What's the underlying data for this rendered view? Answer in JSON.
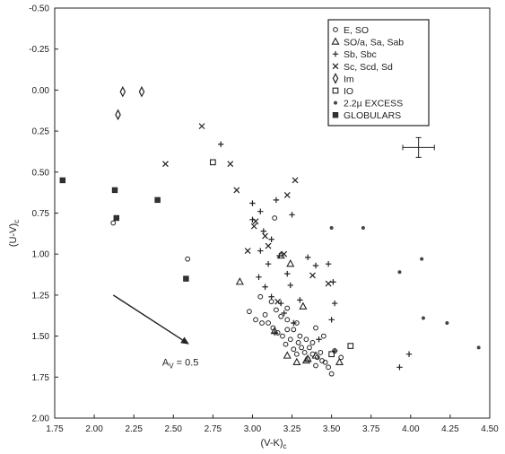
{
  "chart_data": {
    "type": "scatter",
    "xlabel": "(V-K)",
    "xlabel_sub": "c",
    "ylabel": "(U-V)",
    "ylabel_sub": "c",
    "xlim": [
      1.75,
      4.5
    ],
    "ylim": [
      -0.5,
      2.0
    ],
    "y_inverted": true,
    "grid": false,
    "legend_position": "top-right",
    "x_ticks": [
      1.75,
      2.0,
      2.25,
      2.5,
      2.75,
      3.0,
      3.25,
      3.5,
      3.75,
      4.0,
      4.25,
      4.5
    ],
    "x_tick_labels": [
      "1.75",
      "2.00",
      "2.25",
      "2.50",
      "2.75",
      "3.00",
      "3.25",
      "3.50",
      "3.75",
      "4.00",
      "4.25",
      "4.50"
    ],
    "y_ticks": [
      -0.5,
      -0.25,
      0.0,
      0.25,
      0.5,
      0.75,
      1.0,
      1.25,
      1.5,
      1.75,
      2.0
    ],
    "y_tick_labels": [
      "-0.50",
      "-0.25",
      "0.00",
      "0.25",
      "0.50",
      "0.75",
      "1.00",
      "1.25",
      "1.50",
      "1.75",
      "2.00"
    ],
    "series": [
      {
        "name": "E, SO",
        "marker": "circle-open",
        "points": [
          [
            2.12,
            0.81
          ],
          [
            2.59,
            1.03
          ],
          [
            3.05,
            1.26
          ],
          [
            3.08,
            1.37
          ],
          [
            3.12,
            1.29
          ],
          [
            3.15,
            1.34
          ],
          [
            3.18,
            1.38
          ],
          [
            3.22,
            1.33
          ],
          [
            2.98,
            1.35
          ],
          [
            3.02,
            1.4
          ],
          [
            3.06,
            1.42
          ],
          [
            3.1,
            1.42
          ],
          [
            3.13,
            1.45
          ],
          [
            3.16,
            1.48
          ],
          [
            3.19,
            1.5
          ],
          [
            3.22,
            1.46
          ],
          [
            3.24,
            1.52
          ],
          [
            3.21,
            1.55
          ],
          [
            3.26,
            1.58
          ],
          [
            3.29,
            1.54
          ],
          [
            3.31,
            1.57
          ],
          [
            3.28,
            1.61
          ],
          [
            3.33,
            1.6
          ],
          [
            3.36,
            1.57
          ],
          [
            3.38,
            1.61
          ],
          [
            3.35,
            1.64
          ],
          [
            3.41,
            1.63
          ],
          [
            3.44,
            1.65
          ],
          [
            3.4,
            1.68
          ],
          [
            3.46,
            1.66
          ],
          [
            3.48,
            1.69
          ],
          [
            3.5,
            1.73
          ],
          [
            3.43,
            1.6
          ],
          [
            3.38,
            1.54
          ],
          [
            3.34,
            1.52
          ],
          [
            3.3,
            1.5
          ],
          [
            3.26,
            1.46
          ],
          [
            3.14,
            0.78
          ],
          [
            3.45,
            1.5
          ],
          [
            3.52,
            1.59
          ],
          [
            3.56,
            1.63
          ],
          [
            3.4,
            1.45
          ],
          [
            3.22,
            1.4
          ],
          [
            3.28,
            1.42
          ]
        ]
      },
      {
        "name": "SO/a, Sa, Sab",
        "marker": "triangle-open",
        "points": [
          [
            2.92,
            1.17
          ],
          [
            3.18,
            1.01
          ],
          [
            3.24,
            1.06
          ],
          [
            3.14,
            1.47
          ],
          [
            3.32,
            1.32
          ],
          [
            3.22,
            1.62
          ],
          [
            3.28,
            1.66
          ],
          [
            3.35,
            1.64
          ],
          [
            3.4,
            1.62
          ],
          [
            3.55,
            1.66
          ],
          [
            3.34,
            1.65
          ]
        ]
      },
      {
        "name": "Sb, Sbc",
        "marker": "plus",
        "points": [
          [
            2.8,
            0.33
          ],
          [
            3.0,
            0.69
          ],
          [
            3.05,
            0.74
          ],
          [
            3.15,
            0.67
          ],
          [
            3.0,
            0.79
          ],
          [
            3.07,
            0.86
          ],
          [
            3.12,
            0.91
          ],
          [
            3.17,
            1.01
          ],
          [
            3.05,
            0.98
          ],
          [
            3.1,
            1.06
          ],
          [
            3.22,
            1.12
          ],
          [
            3.04,
            1.14
          ],
          [
            3.08,
            1.2
          ],
          [
            3.12,
            1.26
          ],
          [
            3.18,
            1.3
          ],
          [
            3.24,
            1.19
          ],
          [
            3.2,
            1.36
          ],
          [
            3.26,
            1.42
          ],
          [
            3.3,
            1.28
          ],
          [
            3.35,
            1.02
          ],
          [
            3.4,
            1.07
          ],
          [
            3.48,
            1.06
          ],
          [
            3.51,
            1.17
          ],
          [
            3.52,
            1.3
          ],
          [
            3.5,
            1.4
          ],
          [
            3.25,
            0.76
          ],
          [
            3.42,
            1.52
          ],
          [
            3.52,
            1.59
          ],
          [
            3.93,
            1.69
          ],
          [
            3.99,
            1.61
          ],
          [
            3.14,
            1.48
          ]
        ]
      },
      {
        "name": "Sc, Scd, Sd",
        "marker": "cross",
        "points": [
          [
            2.45,
            0.45
          ],
          [
            2.68,
            0.22
          ],
          [
            2.86,
            0.45
          ],
          [
            2.9,
            0.61
          ],
          [
            3.02,
            0.8
          ],
          [
            3.01,
            0.83
          ],
          [
            3.08,
            0.89
          ],
          [
            3.1,
            0.95
          ],
          [
            3.22,
            0.64
          ],
          [
            3.27,
            0.55
          ],
          [
            2.97,
            0.98
          ],
          [
            3.2,
            1.0
          ],
          [
            3.16,
            1.29
          ],
          [
            3.38,
            1.13
          ],
          [
            3.48,
            1.18
          ]
        ]
      },
      {
        "name": "Im",
        "marker": "diamond-open",
        "points": [
          [
            2.15,
            0.15
          ],
          [
            2.18,
            0.01
          ],
          [
            2.3,
            0.01
          ]
        ]
      },
      {
        "name": "IO",
        "marker": "square-open",
        "points": [
          [
            2.75,
            0.44
          ],
          [
            3.62,
            1.56
          ],
          [
            3.5,
            1.61
          ]
        ]
      },
      {
        "name": "2.2µ EXCESS",
        "marker": "dot",
        "points": [
          [
            3.5,
            0.84
          ],
          [
            3.7,
            0.84
          ],
          [
            3.93,
            1.11
          ],
          [
            4.07,
            1.03
          ],
          [
            4.08,
            1.39
          ],
          [
            4.23,
            1.42
          ],
          [
            4.43,
            1.57
          ]
        ]
      },
      {
        "name": "GLOBULARS",
        "marker": "square-filled",
        "points": [
          [
            1.8,
            0.55
          ],
          [
            2.13,
            0.61
          ],
          [
            2.14,
            0.78
          ],
          [
            2.4,
            0.67
          ],
          [
            2.58,
            1.15
          ]
        ]
      }
    ],
    "error_bar": {
      "x": 4.05,
      "y": 0.35,
      "x_err": 0.1,
      "y_err": 0.06
    },
    "annotation": {
      "text": "A",
      "subscript": "V",
      "suffix": " = 0.5",
      "arrow_from": [
        2.12,
        1.25
      ],
      "arrow_to": [
        2.6,
        1.55
      ]
    }
  }
}
